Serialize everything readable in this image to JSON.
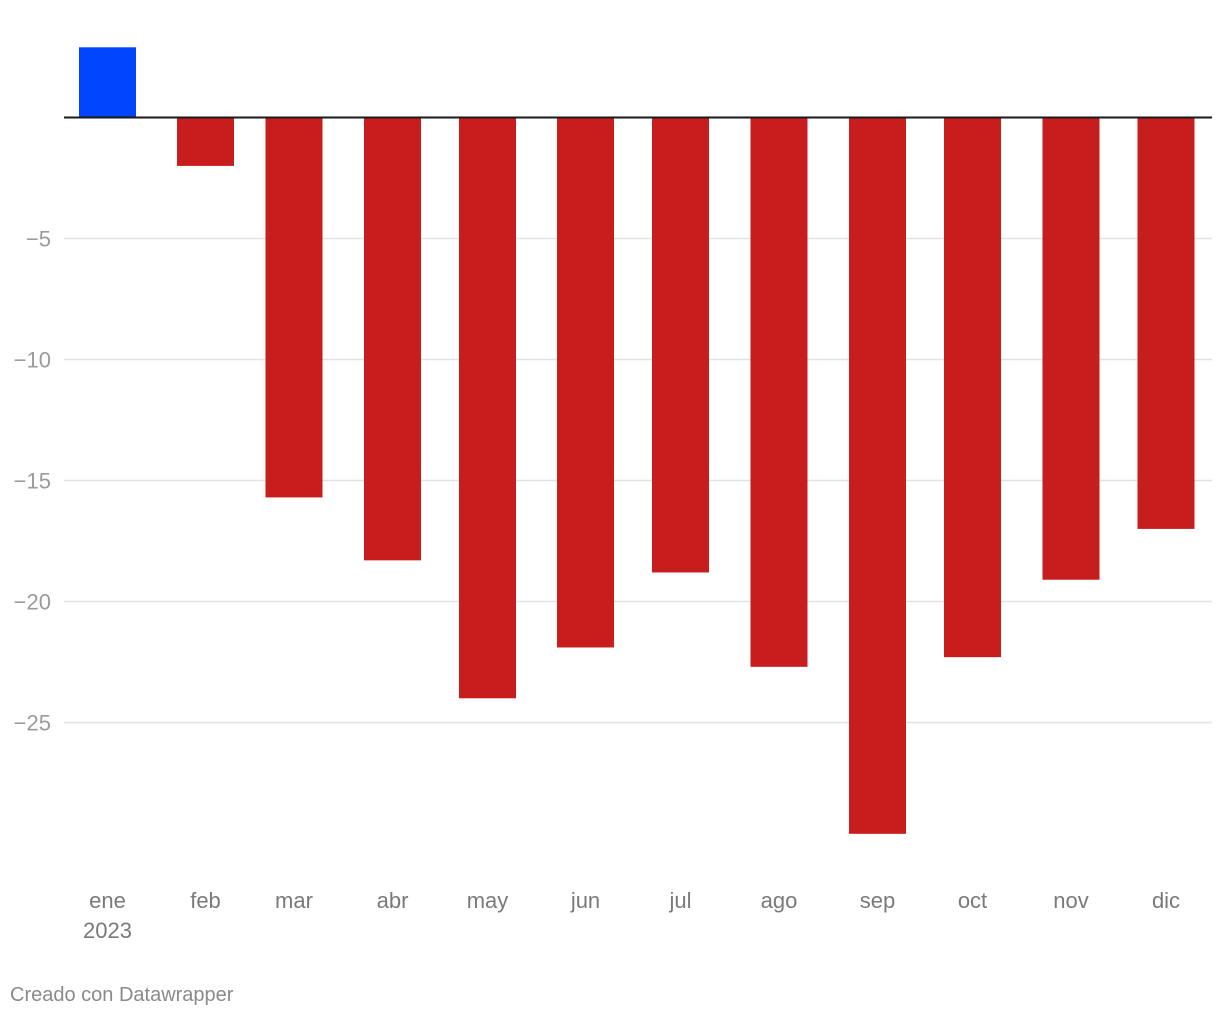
{
  "chart_data": {
    "type": "bar",
    "categories": [
      "ene",
      "feb",
      "mar",
      "abr",
      "may",
      "jun",
      "jul",
      "ago",
      "sep",
      "oct",
      "nov",
      "dic"
    ],
    "year_label": "2023",
    "values": [
      2.9,
      -2.0,
      -15.7,
      -18.3,
      -24.0,
      -21.9,
      -18.8,
      -22.7,
      -29.6,
      -22.3,
      -19.1,
      -17.0
    ],
    "positive_color": "#0044ff",
    "negative_color": "#c71e1d",
    "yticks": [
      -5,
      -10,
      -15,
      -20,
      -25
    ],
    "ytick_labels": [
      "−5",
      "−10",
      "−15",
      "−20",
      "−25"
    ],
    "ylim": [
      -30,
      3
    ],
    "grid": true,
    "title": "",
    "xlabel": "",
    "ylabel": ""
  },
  "footer": {
    "credit": "Creado con Datawrapper"
  }
}
